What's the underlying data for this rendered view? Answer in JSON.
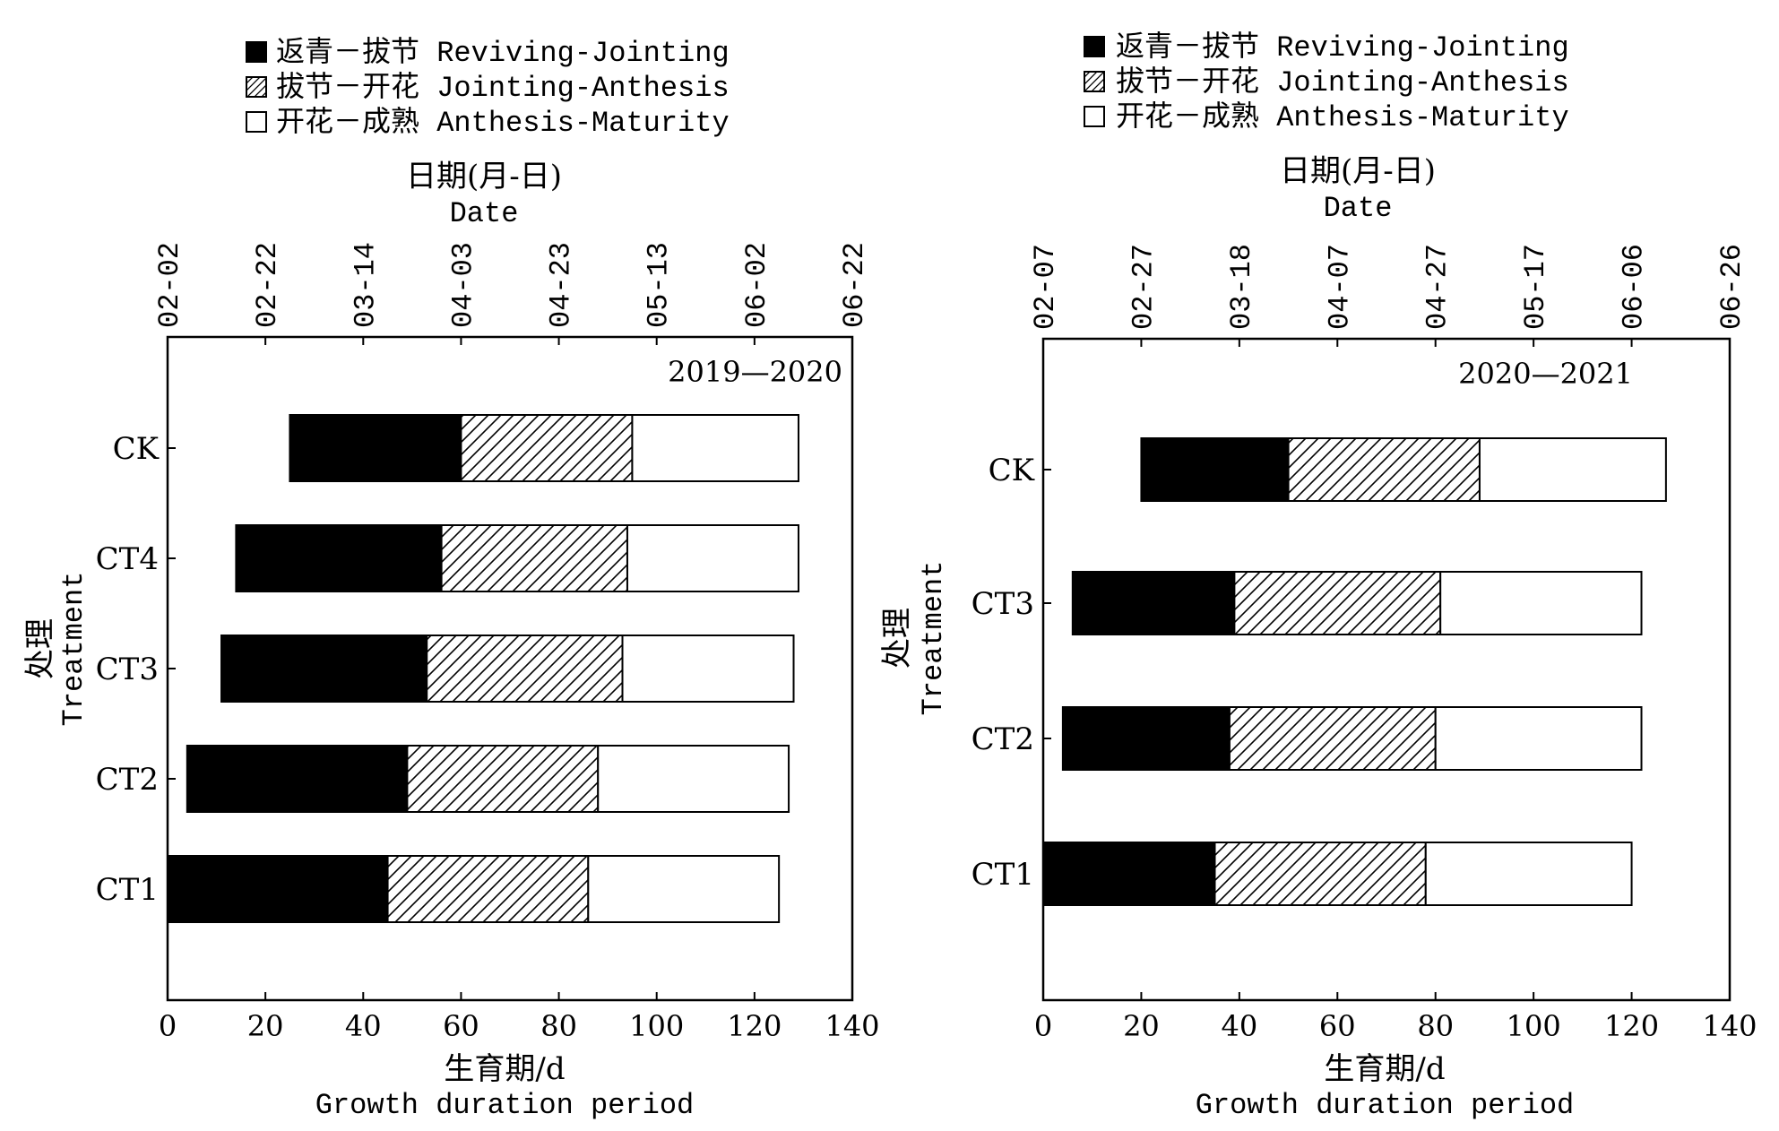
{
  "legend": [
    {
      "label": "返青－拔节 Reviving-Jointing",
      "pattern": "solid"
    },
    {
      "label": "拔节－开花 Jointing-Anthesis",
      "pattern": "hatch"
    },
    {
      "label": "开花－成熟 Anthesis-Maturity",
      "pattern": "empty"
    }
  ],
  "colors": {
    "fill": "#000000",
    "background": "#ffffff",
    "stroke": "#000000"
  },
  "chart_data": [
    {
      "type": "bar",
      "orientation": "horizontal-stacked",
      "title": "2019—2020",
      "top_axis_title_cn": "日期(月-日)",
      "top_axis_title_en": "Date",
      "xlabel_cn": "生育期/d",
      "xlabel_en": "Growth duration period",
      "ylabel_cn": "处理",
      "ylabel_en": "Treatment",
      "xlim": [
        0,
        140
      ],
      "x_ticks": [
        0,
        20,
        40,
        60,
        80,
        100,
        120,
        140
      ],
      "date_ticks": [
        "02-02",
        "02-22",
        "03-14",
        "04-03",
        "04-23",
        "05-13",
        "06-02",
        "06-22"
      ],
      "categories": [
        "CK",
        "CT4",
        "CT3",
        "CT2",
        "CT1"
      ],
      "series": [
        {
          "name": "Reviving-Jointing",
          "start": [
            25,
            14,
            11,
            4,
            0
          ],
          "end": [
            60,
            56,
            53,
            49,
            45
          ]
        },
        {
          "name": "Jointing-Anthesis",
          "start": [
            60,
            56,
            53,
            49,
            45
          ],
          "end": [
            95,
            94,
            93,
            88,
            86
          ]
        },
        {
          "name": "Anthesis-Maturity",
          "start": [
            95,
            94,
            93,
            88,
            86
          ],
          "end": [
            129,
            129,
            128,
            127,
            125
          ]
        }
      ]
    },
    {
      "type": "bar",
      "orientation": "horizontal-stacked",
      "title": "2020—2021",
      "top_axis_title_cn": "日期(月-日)",
      "top_axis_title_en": "Date",
      "xlabel_cn": "生育期/d",
      "xlabel_en": "Growth duration period",
      "ylabel_cn": "处理",
      "ylabel_en": "Treatment",
      "xlim": [
        0,
        140
      ],
      "x_ticks": [
        0,
        20,
        40,
        60,
        80,
        100,
        120,
        140
      ],
      "date_ticks": [
        "02-07",
        "02-27",
        "03-18",
        "04-07",
        "04-27",
        "05-17",
        "06-06",
        "06-26"
      ],
      "categories": [
        "CK",
        "CT3",
        "CT2",
        "CT1"
      ],
      "series": [
        {
          "name": "Reviving-Jointing",
          "start": [
            20,
            6,
            4,
            0
          ],
          "end": [
            50,
            39,
            38,
            35
          ]
        },
        {
          "name": "Jointing-Anthesis",
          "start": [
            50,
            39,
            38,
            35
          ],
          "end": [
            89,
            81,
            80,
            78
          ]
        },
        {
          "name": "Anthesis-Maturity",
          "start": [
            89,
            81,
            80,
            78
          ],
          "end": [
            127,
            122,
            122,
            120
          ]
        }
      ]
    }
  ]
}
